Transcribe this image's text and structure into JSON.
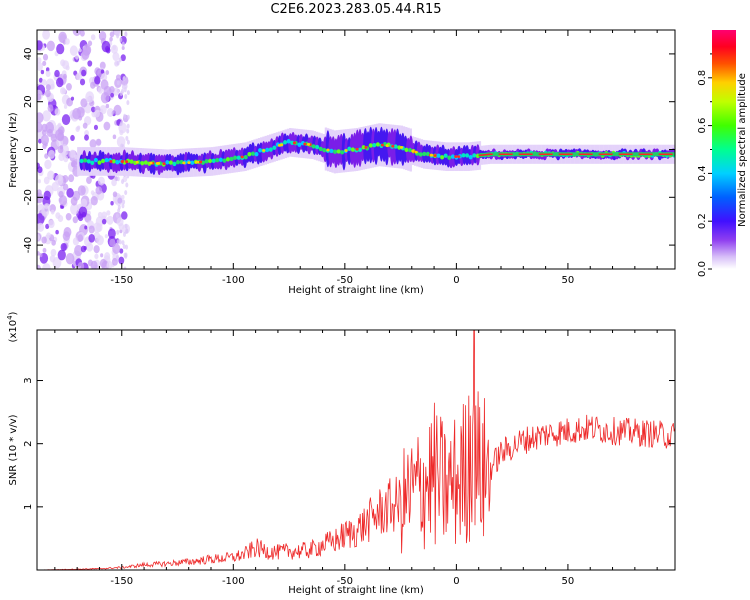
{
  "title": "C2E6.2023.283.05.44.R15",
  "colors": {
    "snr_line": "#ee2a2a",
    "ridge": "#22cc66",
    "ridge_core": "#ff2222",
    "axis": "#000000"
  },
  "chart_data": [
    {
      "type": "heatmap",
      "xlabel": "Height of straight line (km)",
      "ylabel": "Frequency (Hz)",
      "xlim": [
        -188,
        98
      ],
      "ylim": [
        -50,
        50
      ],
      "xticks": [
        "-150",
        "-100",
        "-50",
        "0",
        "50"
      ],
      "xtick_values": [
        -150,
        -100,
        -50,
        0,
        50
      ],
      "yticks": [
        "40",
        "20",
        "0",
        "-20",
        "-40"
      ],
      "ytick_values": [
        40,
        20,
        0,
        -20,
        -40
      ],
      "colorbar": {
        "label": "Normalized spectral amplitude",
        "range": [
          0.0,
          1.0
        ],
        "ticks": [
          "0.0",
          "0.2",
          "0.4",
          "0.6",
          "0.8"
        ],
        "tick_values": [
          0.0,
          0.2,
          0.4,
          0.6,
          0.8
        ],
        "colormap": [
          "#ffffff",
          "#e0c8f8",
          "#8020f0",
          "#2020ff",
          "#00c8ff",
          "#00ff80",
          "#80ff00",
          "#ffff00",
          "#ff8000",
          "#ff0000",
          "#ff0080"
        ]
      },
      "ridge_center_hz": {
        "x": [
          -165,
          -150,
          -130,
          -110,
          -95,
          -85,
          -75,
          -65,
          -55,
          -45,
          -35,
          -25,
          -15,
          -5,
          5,
          15,
          30,
          50,
          70,
          95
        ],
        "y": [
          -5,
          -5,
          -6,
          -5,
          -3,
          0,
          3,
          2,
          -1,
          0,
          2,
          1,
          -2,
          -3,
          -3,
          -2,
          -2,
          -2,
          -2,
          -2
        ]
      }
    },
    {
      "type": "line",
      "xlabel": "Height of straight line (km)",
      "ylabel": "SNR (10 * v/v)",
      "y_multiplier": "(x10",
      "y_multiplier_exp": "4",
      "y_multiplier_close": ")",
      "xlim": [
        -188,
        98
      ],
      "ylim": [
        0,
        3.8
      ],
      "xticks": [
        "-150",
        "-100",
        "-50",
        "0",
        "50"
      ],
      "xtick_values": [
        -150,
        -100,
        -50,
        0,
        50
      ],
      "yticks": [
        "3",
        "2",
        "1"
      ],
      "ytick_values": [
        3,
        2,
        1
      ],
      "series": [
        {
          "x": [
            -188,
            -160,
            -150,
            -140,
            -130,
            -120,
            -110,
            -100,
            -95,
            -90,
            -85,
            -80,
            -75,
            -70,
            -65,
            -60,
            -55,
            -50,
            -45,
            -40,
            -35,
            -30,
            -25,
            -20,
            -15,
            -10,
            -5,
            0,
            5,
            8,
            10,
            15,
            20,
            25,
            30,
            40,
            50,
            60,
            70,
            80,
            90,
            98
          ],
          "y": [
            0.0,
            0.02,
            0.04,
            0.08,
            0.1,
            0.13,
            0.17,
            0.2,
            0.25,
            0.35,
            0.3,
            0.28,
            0.3,
            0.3,
            0.32,
            0.4,
            0.45,
            0.55,
            0.62,
            0.75,
            0.9,
            1.0,
            1.05,
            1.2,
            1.35,
            1.5,
            1.3,
            1.4,
            1.6,
            3.0,
            1.5,
            1.6,
            1.85,
            1.95,
            2.05,
            2.15,
            2.2,
            2.25,
            2.2,
            2.18,
            2.15,
            2.12
          ]
        }
      ]
    }
  ]
}
